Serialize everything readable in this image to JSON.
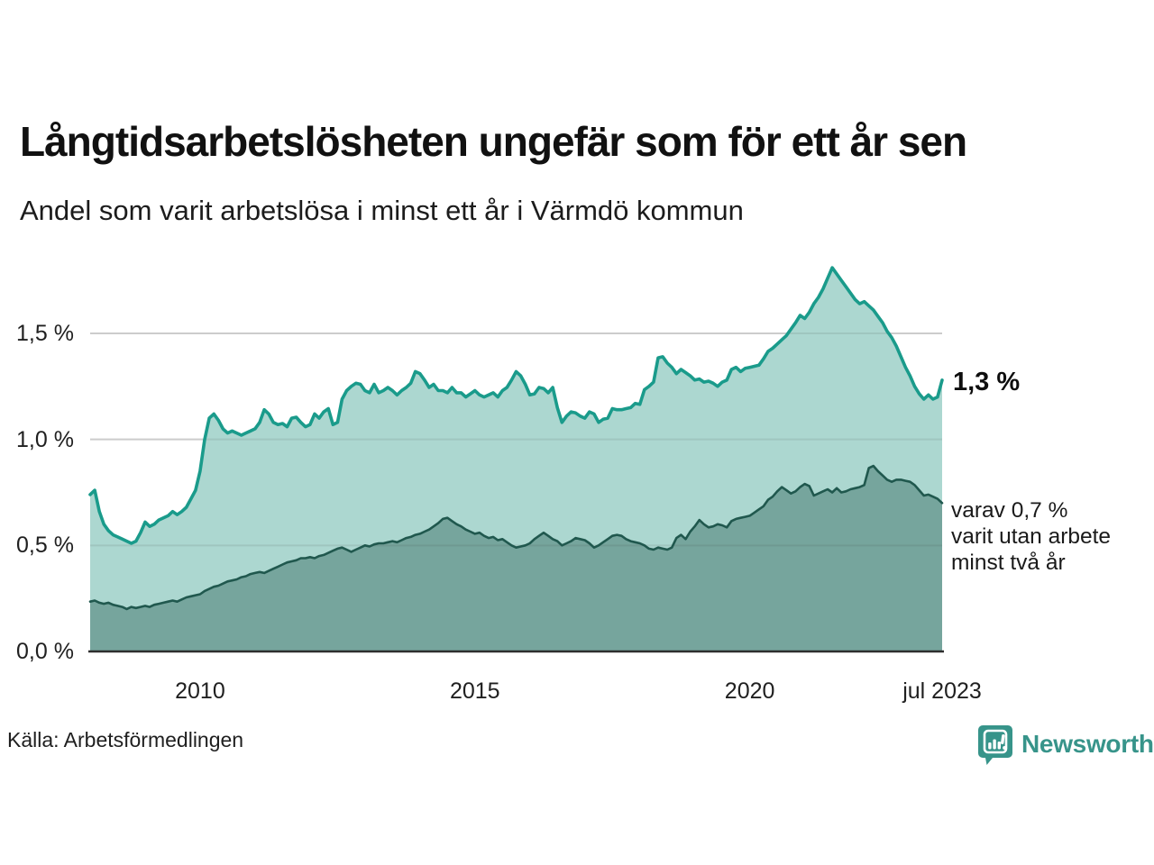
{
  "title": "Långtidsarbetslösheten ungefär som för ett år sen",
  "subtitle": "Andel som varit arbetslösa i minst ett år i Värmdö kommun",
  "source": "Källa: Arbetsförmedlingen",
  "branding": {
    "name": "Newsworthy"
  },
  "annotations": {
    "latest_total": "1,3 %",
    "two_year_note_lines": [
      "varav 0,7 %",
      "varit utan arbete",
      "minst två år"
    ]
  },
  "colors": {
    "total_stroke": "#1a9b8b",
    "total_fill": "#acd7d0",
    "two_year_stroke": "#20584e",
    "two_year_fill": "#76a59d",
    "gridline_under": "#dedede",
    "gridline_over": "rgba(45,45,45,0.10)",
    "axis_line": "#2e2e2e",
    "brand_teal": "#37948a"
  },
  "chart_data": {
    "type": "area",
    "title": "Långtidsarbetslösheten ungefär som för ett år sen",
    "subtitle": "Andel som varit arbetslösa i minst ett år i Värmdö kommun",
    "unit": "%",
    "x_start": "2008-01",
    "x_end": "2023-07",
    "x_frequency": "monthly",
    "ylim": [
      0,
      1.9
    ],
    "grid": true,
    "y_ticks": [
      {
        "value": 0.0,
        "label": "0,0 %"
      },
      {
        "value": 0.5,
        "label": "0,5 %"
      },
      {
        "value": 1.0,
        "label": "1,0 %"
      },
      {
        "value": 1.5,
        "label": "1,5 %"
      }
    ],
    "x_ticks": [
      {
        "month_index": 24,
        "label": "2010"
      },
      {
        "month_index": 84,
        "label": "2015"
      },
      {
        "month_index": 144,
        "label": "2020"
      },
      {
        "month_index": 186,
        "label": "jul 2023"
      }
    ],
    "series": [
      {
        "name": "Andel arbetslösa minst ett år",
        "latest_label": "1,3 %",
        "values": [
          0.74,
          0.76,
          0.66,
          0.6,
          0.57,
          0.55,
          0.54,
          0.53,
          0.52,
          0.51,
          0.52,
          0.56,
          0.61,
          0.59,
          0.6,
          0.62,
          0.63,
          0.64,
          0.66,
          0.645,
          0.66,
          0.68,
          0.72,
          0.76,
          0.85,
          1.0,
          1.1,
          1.12,
          1.09,
          1.05,
          1.03,
          1.04,
          1.03,
          1.02,
          1.03,
          1.04,
          1.05,
          1.08,
          1.14,
          1.12,
          1.08,
          1.07,
          1.075,
          1.06,
          1.1,
          1.105,
          1.08,
          1.06,
          1.07,
          1.12,
          1.1,
          1.13,
          1.145,
          1.07,
          1.08,
          1.19,
          1.23,
          1.25,
          1.265,
          1.26,
          1.23,
          1.22,
          1.26,
          1.22,
          1.23,
          1.245,
          1.23,
          1.21,
          1.23,
          1.245,
          1.265,
          1.32,
          1.31,
          1.28,
          1.245,
          1.26,
          1.23,
          1.23,
          1.22,
          1.245,
          1.22,
          1.22,
          1.2,
          1.215,
          1.23,
          1.21,
          1.2,
          1.21,
          1.22,
          1.2,
          1.23,
          1.245,
          1.28,
          1.32,
          1.3,
          1.26,
          1.21,
          1.215,
          1.245,
          1.24,
          1.22,
          1.245,
          1.15,
          1.08,
          1.11,
          1.13,
          1.125,
          1.11,
          1.1,
          1.13,
          1.12,
          1.08,
          1.095,
          1.1,
          1.145,
          1.14,
          1.14,
          1.145,
          1.15,
          1.17,
          1.165,
          1.235,
          1.25,
          1.27,
          1.385,
          1.39,
          1.36,
          1.34,
          1.31,
          1.33,
          1.315,
          1.3,
          1.28,
          1.285,
          1.27,
          1.275,
          1.265,
          1.25,
          1.27,
          1.28,
          1.33,
          1.34,
          1.32,
          1.335,
          1.34,
          1.345,
          1.35,
          1.38,
          1.415,
          1.43,
          1.45,
          1.47,
          1.49,
          1.52,
          1.55,
          1.585,
          1.57,
          1.6,
          1.64,
          1.67,
          1.71,
          1.76,
          1.81,
          1.78,
          1.75,
          1.72,
          1.69,
          1.66,
          1.64,
          1.65,
          1.63,
          1.61,
          1.58,
          1.55,
          1.51,
          1.48,
          1.44,
          1.39,
          1.34,
          1.3,
          1.25,
          1.215,
          1.19,
          1.21,
          1.19,
          1.2,
          1.28
        ]
      },
      {
        "name": "Varav utan arbete minst två år",
        "latest_label": "0,7 %",
        "values": [
          0.235,
          0.24,
          0.23,
          0.225,
          0.23,
          0.22,
          0.215,
          0.21,
          0.2,
          0.21,
          0.205,
          0.21,
          0.215,
          0.21,
          0.22,
          0.225,
          0.23,
          0.235,
          0.24,
          0.235,
          0.245,
          0.255,
          0.26,
          0.265,
          0.27,
          0.285,
          0.295,
          0.305,
          0.31,
          0.32,
          0.33,
          0.335,
          0.34,
          0.35,
          0.355,
          0.365,
          0.37,
          0.375,
          0.37,
          0.38,
          0.39,
          0.4,
          0.41,
          0.42,
          0.425,
          0.43,
          0.44,
          0.44,
          0.445,
          0.44,
          0.45,
          0.455,
          0.465,
          0.475,
          0.485,
          0.49,
          0.48,
          0.47,
          0.48,
          0.49,
          0.5,
          0.495,
          0.505,
          0.51,
          0.51,
          0.515,
          0.52,
          0.515,
          0.525,
          0.535,
          0.54,
          0.55,
          0.555,
          0.565,
          0.575,
          0.59,
          0.605,
          0.625,
          0.63,
          0.615,
          0.6,
          0.59,
          0.575,
          0.565,
          0.555,
          0.56,
          0.545,
          0.535,
          0.54,
          0.525,
          0.53,
          0.515,
          0.5,
          0.49,
          0.495,
          0.5,
          0.51,
          0.53,
          0.545,
          0.56,
          0.545,
          0.53,
          0.52,
          0.5,
          0.51,
          0.52,
          0.535,
          0.53,
          0.525,
          0.51,
          0.49,
          0.5,
          0.515,
          0.53,
          0.545,
          0.55,
          0.545,
          0.53,
          0.52,
          0.515,
          0.51,
          0.5,
          0.485,
          0.48,
          0.49,
          0.485,
          0.48,
          0.49,
          0.535,
          0.55,
          0.53,
          0.565,
          0.59,
          0.62,
          0.6,
          0.585,
          0.59,
          0.6,
          0.595,
          0.585,
          0.615,
          0.625,
          0.63,
          0.635,
          0.64,
          0.655,
          0.67,
          0.685,
          0.715,
          0.73,
          0.755,
          0.775,
          0.76,
          0.745,
          0.755,
          0.775,
          0.79,
          0.78,
          0.735,
          0.745,
          0.755,
          0.765,
          0.75,
          0.77,
          0.75,
          0.755,
          0.765,
          0.77,
          0.775,
          0.785,
          0.865,
          0.875,
          0.85,
          0.83,
          0.81,
          0.8,
          0.81,
          0.81,
          0.805,
          0.8,
          0.785,
          0.76,
          0.735,
          0.74,
          0.73,
          0.72,
          0.7
        ]
      }
    ]
  }
}
